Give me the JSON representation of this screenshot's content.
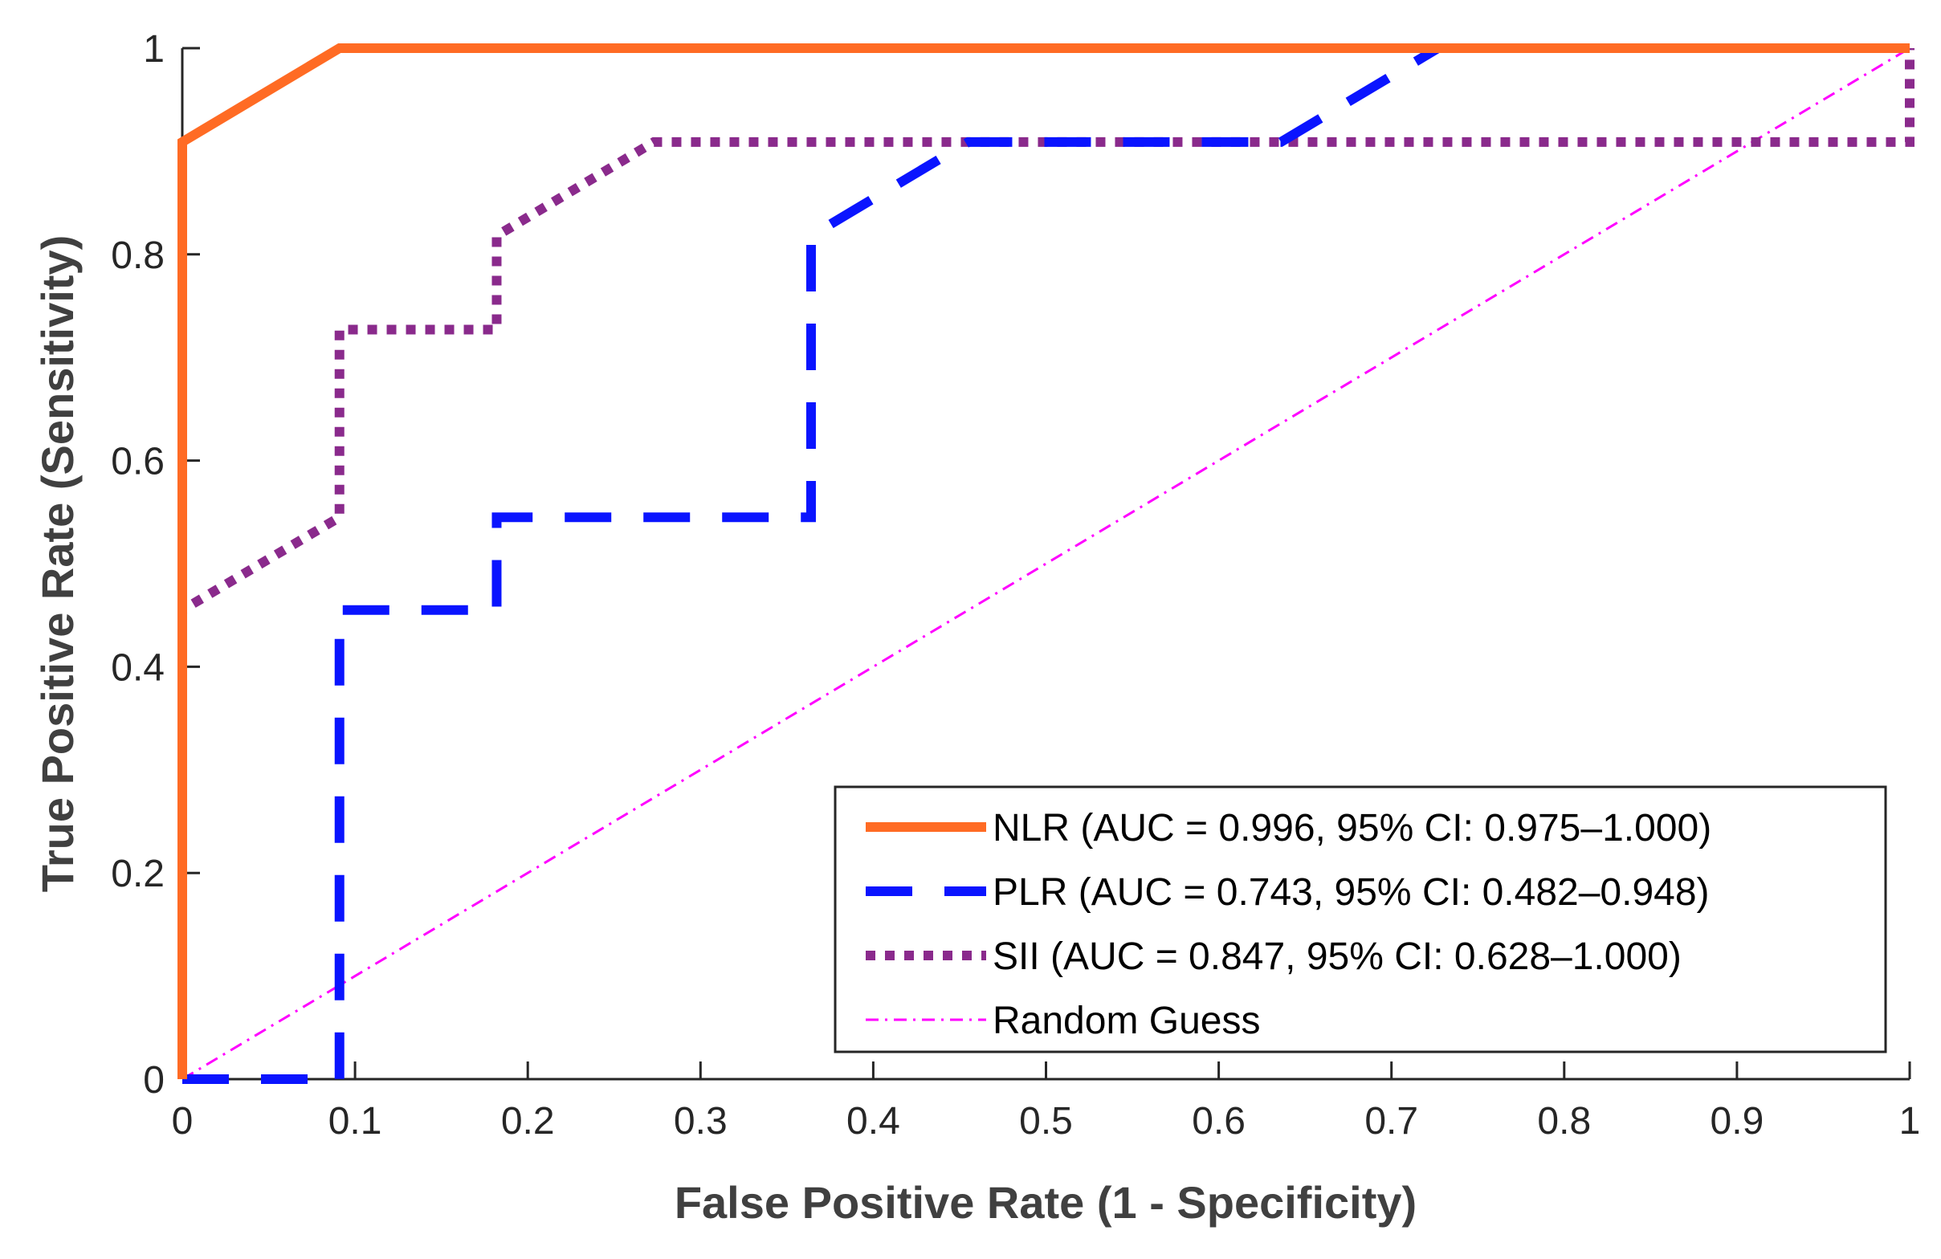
{
  "chart_data": {
    "type": "line",
    "title": "",
    "xlabel": "False Positive Rate (1 - Specificity)",
    "ylabel": "True Positive Rate (Sensitivity)",
    "xlim": [
      0,
      1
    ],
    "ylim": [
      0,
      1
    ],
    "grid": false,
    "legend_position": "bottom-right",
    "x_ticks": [
      0,
      0.1,
      0.2,
      0.3,
      0.4,
      0.5,
      0.6,
      0.7,
      0.8,
      0.9,
      1
    ],
    "x_tick_labels": [
      "0",
      "0.1",
      "0.2",
      "0.3",
      "0.4",
      "0.5",
      "0.6",
      "0.7",
      "0.8",
      "0.9",
      "1"
    ],
    "y_ticks": [
      0,
      0.2,
      0.4,
      0.6,
      0.8,
      1
    ],
    "y_tick_labels": [
      "0",
      "0.2",
      "0.4",
      "0.6",
      "0.8",
      "1"
    ],
    "series": [
      {
        "name": "NLR (AUC = 0.996, 95% CI: 0.975–1.000)",
        "key": "nlr",
        "color": "#ff6b24",
        "style": "solid",
        "x": [
          0,
          0,
          0.091,
          1
        ],
        "y": [
          0,
          0.909,
          1,
          1
        ]
      },
      {
        "name": "PLR (AUC = 0.743, 95% CI: 0.482–0.948)",
        "key": "plr",
        "color": "#0a14ff",
        "style": "dashed",
        "x": [
          0,
          0.091,
          0.091,
          0.182,
          0.182,
          0.364,
          0.364,
          0.455,
          0.636,
          0.727,
          1
        ],
        "y": [
          0,
          0,
          0.455,
          0.455,
          0.545,
          0.545,
          0.818,
          0.909,
          0.909,
          1,
          1
        ]
      },
      {
        "name": "SII (AUC = 0.847, 95% CI: 0.628–1.000)",
        "key": "sii",
        "color": "#8a2a8c",
        "style": "dotted",
        "x": [
          0,
          0,
          0.091,
          0.091,
          0.182,
          0.182,
          0.273,
          1,
          1
        ],
        "y": [
          0,
          0.455,
          0.545,
          0.727,
          0.727,
          0.818,
          0.909,
          0.909,
          1
        ]
      },
      {
        "name": "Random Guess",
        "key": "random",
        "color": "#ff00ff",
        "style": "dashdot",
        "x": [
          0,
          1
        ],
        "y": [
          0,
          1
        ]
      }
    ]
  }
}
